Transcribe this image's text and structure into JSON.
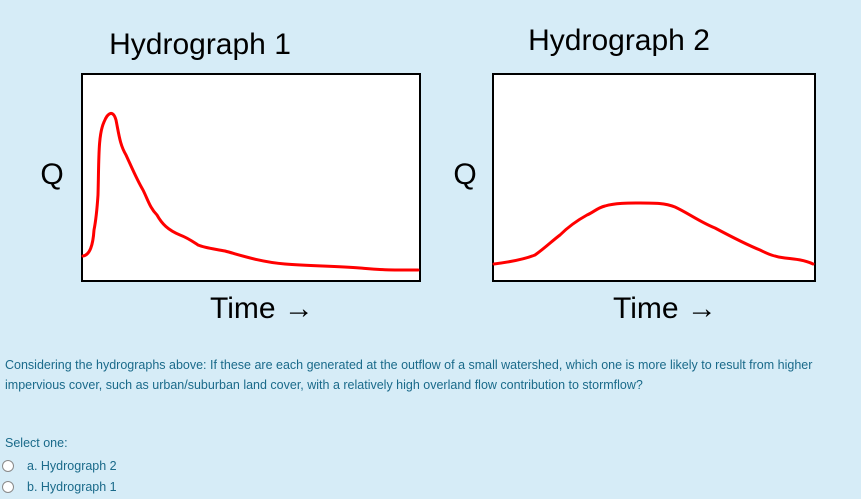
{
  "figure": {
    "left": {
      "title": "Hydrograph 1",
      "ylabel": "Q",
      "xlabel": "Time →"
    },
    "right": {
      "title": "Hydrograph 2",
      "ylabel": "Q",
      "xlabel": "Time →"
    },
    "colors": {
      "curve": "#ff0000",
      "frame": "#000000",
      "background": "#ffffff"
    }
  },
  "question": {
    "text": "Considering the hydrographs above: If these are each generated at the outflow of a small watershed, which one is more likely to result from higher impervious cover, such as urban/suburban land cover, with a relatively high overland flow contribution to stormflow?",
    "select_label": "Select one:",
    "options": [
      {
        "label": "a. Hydrograph 2",
        "selected": false
      },
      {
        "label": "b. Hydrograph 1",
        "selected": false
      }
    ]
  }
}
